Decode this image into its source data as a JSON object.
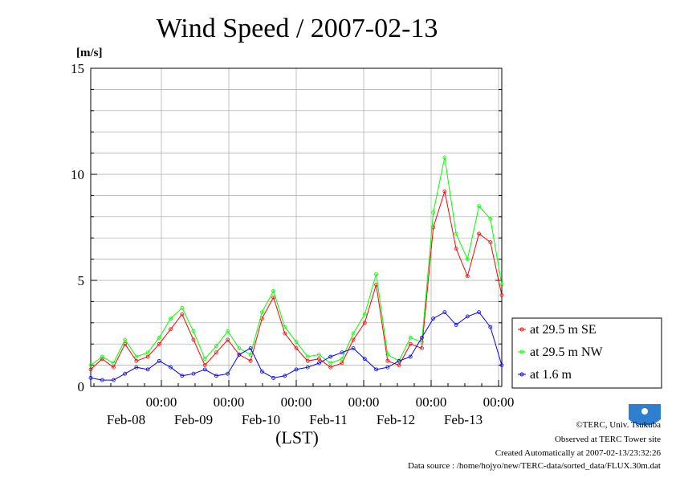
{
  "chart_data": {
    "type": "line",
    "title": "Wind Speed / 2007-02-13",
    "ylabel": "[m/s]",
    "xlabel": "(LST)",
    "ylim": [
      0,
      15
    ],
    "yticks": [
      0,
      5,
      10,
      15
    ],
    "xlim": [
      0,
      144
    ],
    "xticks_top": [
      "00:00",
      "00:00",
      "00:00",
      "00:00",
      "00:00",
      "00:00"
    ],
    "xticks_bottom": [
      "Feb-08",
      "Feb-09",
      "Feb-10",
      "Feb-11",
      "Feb-12",
      "Feb-13"
    ],
    "grid": true,
    "legend": "right",
    "x_unit": "hours since start of plotted period (every 4 h)",
    "x": [
      0,
      4,
      8,
      12,
      16,
      20,
      24,
      28,
      32,
      36,
      40,
      44,
      48,
      52,
      56,
      60,
      64,
      68,
      72,
      76,
      80,
      84,
      88,
      92,
      96,
      100,
      104,
      108,
      112,
      116,
      120,
      124,
      128,
      132,
      136,
      140,
      144
    ],
    "series": [
      {
        "name": "at 29.5 m SE",
        "color": "#ff0000",
        "values": [
          0.8,
          1.3,
          0.9,
          2.0,
          1.2,
          1.4,
          2.0,
          2.7,
          3.4,
          2.2,
          1.0,
          1.6,
          2.2,
          1.5,
          1.2,
          3.2,
          4.2,
          2.5,
          1.8,
          1.2,
          1.3,
          0.9,
          1.1,
          2.2,
          3.0,
          4.8,
          1.2,
          1.0,
          2.0,
          1.8,
          7.5,
          9.2,
          6.5,
          5.2,
          7.2,
          6.8,
          4.3
        ]
      },
      {
        "name": "at 29.5 m NW",
        "color": "#00ff00",
        "values": [
          1.0,
          1.4,
          1.1,
          2.2,
          1.4,
          1.6,
          2.3,
          3.2,
          3.7,
          2.6,
          1.3,
          1.9,
          2.6,
          1.8,
          1.5,
          3.5,
          4.5,
          2.8,
          2.1,
          1.4,
          1.5,
          1.1,
          1.3,
          2.5,
          3.4,
          5.3,
          1.5,
          1.2,
          2.3,
          2.1,
          8.2,
          10.8,
          7.2,
          6.0,
          8.5,
          7.9,
          4.8
        ]
      },
      {
        "name": "at 1.6 m",
        "color": "#0000ff",
        "values": [
          0.4,
          0.3,
          0.3,
          0.6,
          0.9,
          0.8,
          1.2,
          0.9,
          0.5,
          0.6,
          0.8,
          0.5,
          0.6,
          1.5,
          1.8,
          0.7,
          0.4,
          0.5,
          0.8,
          0.9,
          1.1,
          1.4,
          1.6,
          1.8,
          1.3,
          0.8,
          0.9,
          1.2,
          1.4,
          2.3,
          3.2,
          3.5,
          2.9,
          3.3,
          3.5,
          2.8,
          1.0
        ]
      }
    ]
  },
  "footer": {
    "copyright": "©TERC, Univ. Tsukuba",
    "observed": "Observed at TERC Tower site",
    "created": "Created Automatically at 2007-02-13/23:32:26",
    "source": "Data source : /home/hojyo/new/TERC-data/sorted_data/FLUX.30m.dat",
    "logo_text": "TERC"
  }
}
